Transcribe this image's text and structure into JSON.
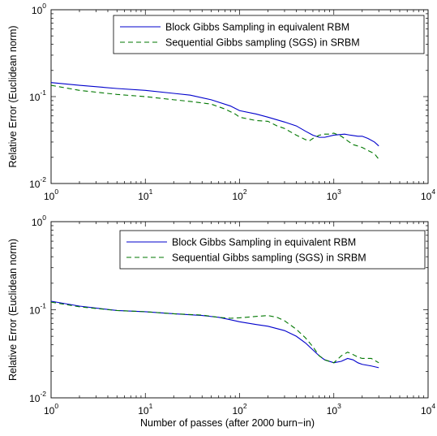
{
  "chart_data": [
    {
      "type": "line",
      "xscale": "log",
      "yscale": "log",
      "xlim": [
        1,
        10000
      ],
      "ylim": [
        0.01,
        1
      ],
      "xlabel": "",
      "ylabel": "Relative Error (Euclidean norm)",
      "grid": false,
      "legend_position": "top-right",
      "x_ticks": [
        {
          "base": "10",
          "exp": "0",
          "value": 1
        },
        {
          "base": "10",
          "exp": "1",
          "value": 10
        },
        {
          "base": "10",
          "exp": "2",
          "value": 100
        },
        {
          "base": "10",
          "exp": "3",
          "value": 1000
        },
        {
          "base": "10",
          "exp": "4",
          "value": 10000
        }
      ],
      "y_ticks": [
        {
          "base": "10",
          "exp": "-2",
          "value": 0.01
        },
        {
          "base": "10",
          "exp": "-1",
          "value": 0.1
        },
        {
          "base": "10",
          "exp": "0",
          "value": 1
        }
      ],
      "series": [
        {
          "name": "Block Gibbs Sampling in equivalent RBM",
          "color": "#0000cc",
          "dash": "solid",
          "points": [
            [
              1,
              0.145
            ],
            [
              2,
              0.135
            ],
            [
              5,
              0.124
            ],
            [
              10,
              0.118
            ],
            [
              20,
              0.109
            ],
            [
              30,
              0.104
            ],
            [
              50,
              0.092
            ],
            [
              80,
              0.078
            ],
            [
              100,
              0.069
            ],
            [
              150,
              0.063
            ],
            [
              200,
              0.058
            ],
            [
              300,
              0.051
            ],
            [
              400,
              0.046
            ],
            [
              500,
              0.04
            ],
            [
              600,
              0.036
            ],
            [
              700,
              0.034
            ],
            [
              800,
              0.034
            ],
            [
              1000,
              0.036
            ],
            [
              1300,
              0.037
            ],
            [
              1500,
              0.036
            ],
            [
              1800,
              0.035
            ],
            [
              2000,
              0.035
            ],
            [
              2300,
              0.033
            ],
            [
              2700,
              0.03
            ],
            [
              3000,
              0.027
            ]
          ]
        },
        {
          "name": "Sequential Gibbs sampling (SGS) in SRBM",
          "color": "#007700",
          "dash": "dashed",
          "points": [
            [
              1,
              0.135
            ],
            [
              2,
              0.118
            ],
            [
              5,
              0.106
            ],
            [
              10,
              0.1
            ],
            [
              20,
              0.092
            ],
            [
              30,
              0.088
            ],
            [
              50,
              0.082
            ],
            [
              70,
              0.072
            ],
            [
              90,
              0.063
            ],
            [
              100,
              0.058
            ],
            [
              150,
              0.053
            ],
            [
              200,
              0.052
            ],
            [
              250,
              0.046
            ],
            [
              300,
              0.043
            ],
            [
              400,
              0.036
            ],
            [
              500,
              0.032
            ],
            [
              550,
              0.031
            ],
            [
              600,
              0.033
            ],
            [
              700,
              0.036
            ],
            [
              800,
              0.037
            ],
            [
              900,
              0.037
            ],
            [
              1000,
              0.038
            ],
            [
              1200,
              0.035
            ],
            [
              1400,
              0.031
            ],
            [
              1600,
              0.028
            ],
            [
              1800,
              0.027
            ],
            [
              2000,
              0.026
            ],
            [
              2300,
              0.024
            ],
            [
              2700,
              0.022
            ],
            [
              3000,
              0.019
            ]
          ]
        }
      ]
    },
    {
      "type": "line",
      "xscale": "log",
      "yscale": "log",
      "xlim": [
        1,
        10000
      ],
      "ylim": [
        0.01,
        1
      ],
      "xlabel": "Number of passes (after 2000 burn−in)",
      "ylabel": "Relative Error (Euclidean norm)",
      "grid": false,
      "legend_position": "top-right",
      "x_ticks": [
        {
          "base": "10",
          "exp": "0",
          "value": 1
        },
        {
          "base": "10",
          "exp": "1",
          "value": 10
        },
        {
          "base": "10",
          "exp": "2",
          "value": 100
        },
        {
          "base": "10",
          "exp": "3",
          "value": 1000
        },
        {
          "base": "10",
          "exp": "4",
          "value": 10000
        }
      ],
      "y_ticks": [
        {
          "base": "10",
          "exp": "-2",
          "value": 0.01
        },
        {
          "base": "10",
          "exp": "-1",
          "value": 0.1
        },
        {
          "base": "10",
          "exp": "0",
          "value": 1
        }
      ],
      "series": [
        {
          "name": "Block Gibbs Sampling in equivalent RBM",
          "color": "#0000cc",
          "dash": "solid",
          "points": [
            [
              1,
              0.125
            ],
            [
              2,
              0.11
            ],
            [
              5,
              0.098
            ],
            [
              10,
              0.095
            ],
            [
              20,
              0.09
            ],
            [
              40,
              0.086
            ],
            [
              60,
              0.082
            ],
            [
              80,
              0.077
            ],
            [
              100,
              0.073
            ],
            [
              150,
              0.068
            ],
            [
              200,
              0.065
            ],
            [
              300,
              0.058
            ],
            [
              400,
              0.05
            ],
            [
              500,
              0.042
            ],
            [
              600,
              0.035
            ],
            [
              700,
              0.03
            ],
            [
              800,
              0.027
            ],
            [
              1000,
              0.025
            ],
            [
              1200,
              0.026
            ],
            [
              1400,
              0.028
            ],
            [
              1600,
              0.027
            ],
            [
              1800,
              0.025
            ],
            [
              2000,
              0.024
            ],
            [
              2500,
              0.023
            ],
            [
              3000,
              0.022
            ]
          ]
        },
        {
          "name": "Sequential Gibbs sampling (SGS) in SRBM",
          "color": "#007700",
          "dash": "dashed",
          "points": [
            [
              1,
              0.122
            ],
            [
              2,
              0.108
            ],
            [
              5,
              0.098
            ],
            [
              10,
              0.095
            ],
            [
              20,
              0.09
            ],
            [
              40,
              0.087
            ],
            [
              60,
              0.082
            ],
            [
              80,
              0.08
            ],
            [
              100,
              0.081
            ],
            [
              150,
              0.084
            ],
            [
              200,
              0.086
            ],
            [
              250,
              0.082
            ],
            [
              300,
              0.075
            ],
            [
              400,
              0.06
            ],
            [
              500,
              0.048
            ],
            [
              600,
              0.038
            ],
            [
              700,
              0.03
            ],
            [
              800,
              0.027
            ],
            [
              1000,
              0.025
            ],
            [
              1200,
              0.03
            ],
            [
              1400,
              0.033
            ],
            [
              1600,
              0.031
            ],
            [
              1800,
              0.029
            ],
            [
              2000,
              0.028
            ],
            [
              2500,
              0.028
            ],
            [
              3000,
              0.025
            ]
          ]
        }
      ]
    }
  ]
}
